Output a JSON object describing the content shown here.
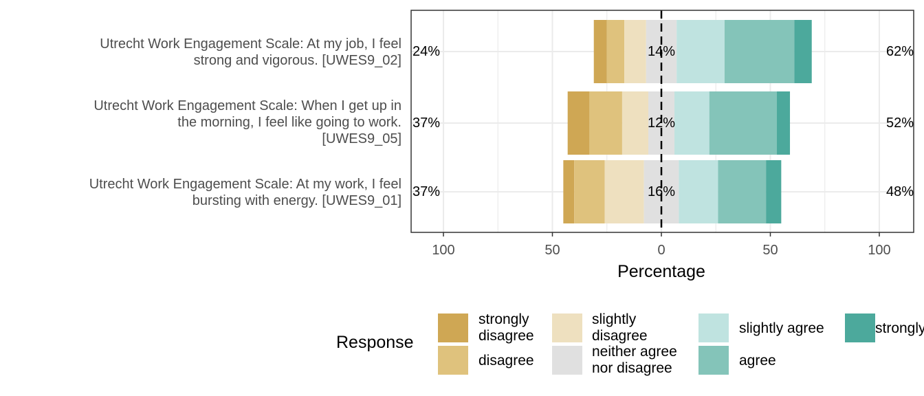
{
  "chart_data": {
    "type": "bar",
    "orientation": "horizontal-diverging",
    "xlabel": "Percentage",
    "xlim": [
      -100,
      100
    ],
    "x_ticks": [
      -100,
      -50,
      0,
      50,
      100
    ],
    "x_tick_labels": [
      "100",
      "50",
      "0",
      "50",
      "100"
    ],
    "categories": [
      "Utrecht Work Engagement Scale: At my job, I feel\nstrong and vigorous. [UWES9_02]",
      "Utrecht Work Engagement Scale: When I get up in\nthe morning, I feel like going to work.\n[UWES9_05]",
      "Utrecht Work Engagement Scale: At my work, I feel\nbursting with energy. [UWES9_01]"
    ],
    "series": [
      {
        "name": "strongly\ndisagree",
        "color": "#cfa754",
        "values": [
          6,
          10,
          5
        ]
      },
      {
        "name": "disagree",
        "color": "#dfc27d",
        "values": [
          8,
          15,
          14
        ]
      },
      {
        "name": "slightly\ndisagree",
        "color": "#eee0bf",
        "values": [
          10,
          12,
          18
        ]
      },
      {
        "name": "neither agree\nnor disagree",
        "color": "#e0e0e0",
        "values": [
          14,
          12,
          16
        ]
      },
      {
        "name": "slightly agree",
        "color": "#bfe3e0",
        "values": [
          22,
          16,
          18
        ]
      },
      {
        "name": "agree",
        "color": "#84c4b9",
        "values": [
          32,
          31,
          22
        ]
      },
      {
        "name": "strongly agree",
        "color": "#4ca99c",
        "values": [
          8,
          6,
          7
        ]
      }
    ],
    "left_labels": [
      "24%",
      "37%",
      "37%"
    ],
    "center_labels": [
      "14%",
      "12%",
      "16%"
    ],
    "right_labels": [
      "62%",
      "52%",
      "48%"
    ],
    "legend": {
      "title": "Response",
      "position": "bottom"
    }
  }
}
